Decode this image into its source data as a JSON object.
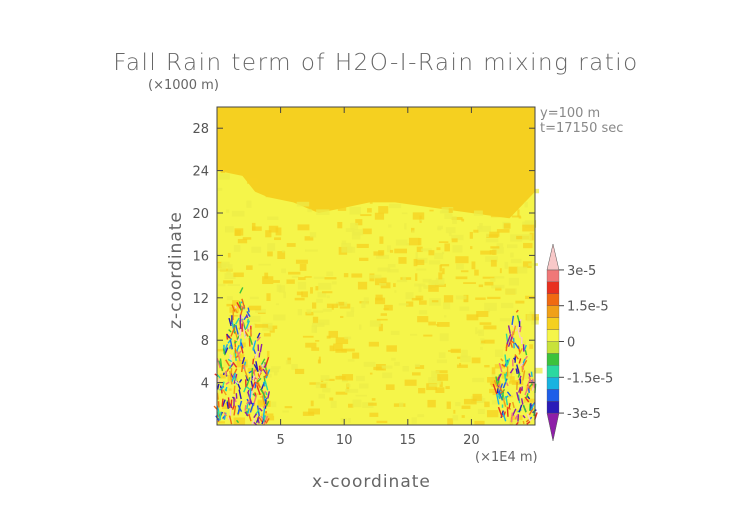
{
  "chart_data": {
    "type": "heatmap",
    "title": "Fall Rain term of H2O-I-Rain mixing ratio",
    "xlabel": "x-coordinate",
    "ylabel": "z-coordinate",
    "x_unit": "(×1E4 m)",
    "y_unit": "(×1000 m)",
    "xlim": [
      0,
      25
    ],
    "ylim": [
      0,
      30
    ],
    "x_ticks": [
      5,
      10,
      15,
      20
    ],
    "y_ticks": [
      4,
      8,
      12,
      16,
      20,
      24,
      28
    ],
    "annotations": [
      "y=100 m",
      "t=17150 sec"
    ],
    "colorbar": {
      "range": [
        -3.5e-05,
        3.5e-05
      ],
      "tick_values": [
        3e-05,
        1.5e-05,
        0,
        -1.5e-05,
        -3e-05
      ],
      "tick_labels": [
        "3e-5",
        "1.5e-5",
        "0",
        "-1.5e-5",
        "-3e-5"
      ],
      "colors": [
        "#8e1fa8",
        "#2a1cb8",
        "#1e5ee8",
        "#19b3e0",
        "#2bd8a0",
        "#3cc23c",
        "#c8e23a",
        "#f5f54a",
        "#f5d020",
        "#f0a018",
        "#f06a12",
        "#e83020",
        "#f07878",
        "#f8c8c8"
      ]
    },
    "field": {
      "background_value": 0,
      "background_color": "#f5d020",
      "light_region_color": "#f5f54a",
      "light_region_top_z": [
        24,
        23.5,
        22,
        21.5,
        21,
        20,
        20.5,
        21,
        21,
        20.5,
        20,
        19.5,
        22
      ],
      "light_region_top_x": [
        0,
        2,
        3,
        4,
        6,
        8,
        10,
        12,
        14,
        17,
        20,
        23,
        25
      ],
      "left_cell_x_range": [
        0,
        4
      ],
      "left_cell_z_range": [
        0,
        13.5
      ],
      "right_cell_x_range": [
        22,
        25
      ],
      "right_cell_z_range": [
        0,
        11
      ]
    }
  }
}
